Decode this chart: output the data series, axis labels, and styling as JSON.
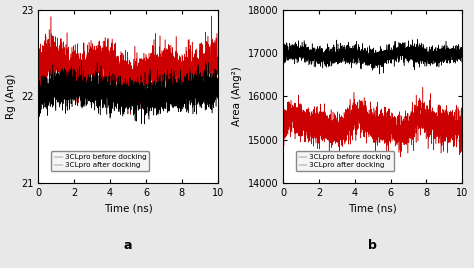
{
  "panel_a": {
    "title": "a",
    "xlabel": "Time (ns)",
    "ylabel": "Rg (Ang)",
    "xlim": [
      0,
      10
    ],
    "ylim": [
      21,
      23
    ],
    "yticks": [
      21,
      22,
      23
    ],
    "xticks": [
      0,
      2,
      4,
      6,
      8,
      10
    ],
    "line1_label": "3CLpro before docking",
    "line1_color": "#cc0000",
    "line1_mean": 22.35,
    "line1_std": 0.13,
    "line2_label": "3CLpro after docking",
    "line2_color": "#000000",
    "line2_mean": 22.05,
    "line2_std": 0.1
  },
  "panel_b": {
    "title": "b",
    "xlabel": "Time (ns)",
    "ylabel": "Area (Ang²)",
    "xlim": [
      0,
      10
    ],
    "ylim": [
      14000,
      18000
    ],
    "yticks": [
      14000,
      15000,
      16000,
      17000,
      18000
    ],
    "xticks": [
      0,
      2,
      4,
      6,
      8,
      10
    ],
    "line1_label": "3CLpro before docking",
    "line1_color": "#000000",
    "line1_mean": 16950,
    "line1_std": 100,
    "line2_label": "3CLpro after docking",
    "line2_color": "#cc0000",
    "line2_mean": 15350,
    "line2_std": 200
  },
  "fig_bg": "#e8e8e8",
  "n_points": 3000,
  "seed": 42
}
